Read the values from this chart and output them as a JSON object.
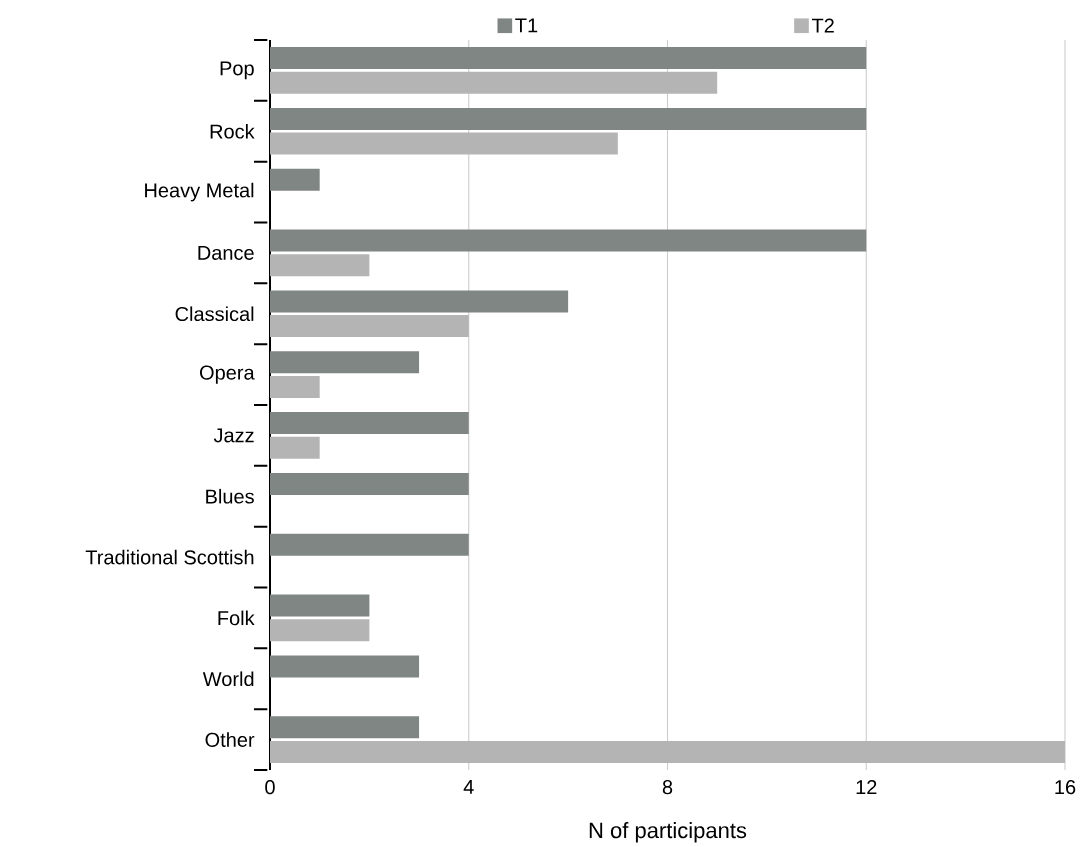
{
  "chart_data": {
    "type": "bar",
    "orientation": "horizontal",
    "xlabel": "N of participants",
    "categories": [
      "Pop",
      "Rock",
      "Heavy Metal",
      "Dance",
      "Classical",
      "Opera",
      "Jazz",
      "Blues",
      "Traditional Scottish",
      "Folk",
      "World",
      "Other"
    ],
    "series": [
      {
        "name": "T1",
        "color": "#808683",
        "values": [
          12,
          12,
          1,
          12,
          6,
          3,
          4,
          4,
          4,
          2,
          3,
          3
        ]
      },
      {
        "name": "T2",
        "color": "#b4b4b4",
        "values": [
          9,
          7,
          0,
          2,
          4,
          1,
          1,
          0,
          0,
          2,
          0,
          16
        ]
      }
    ],
    "xlim": [
      0,
      16
    ],
    "xticks": [
      0,
      4,
      8,
      12,
      16
    ],
    "grid": "x",
    "legend": "top"
  }
}
